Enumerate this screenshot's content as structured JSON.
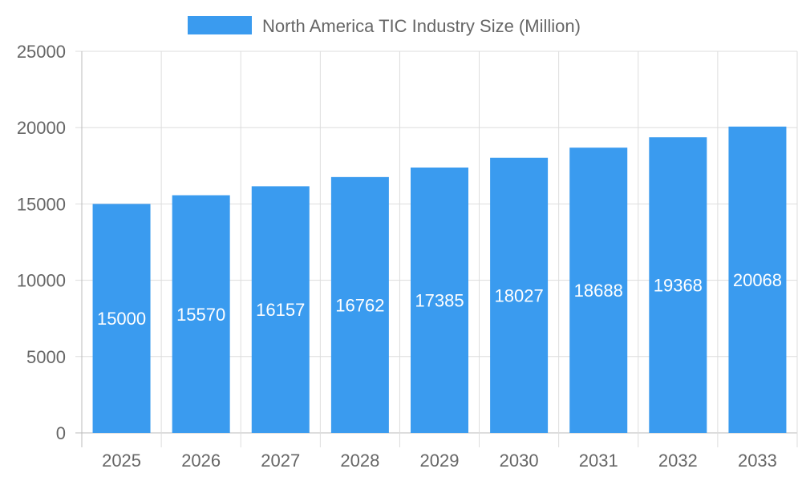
{
  "chart_data": {
    "type": "bar",
    "title": "",
    "xlabel": "",
    "ylabel": "",
    "categories": [
      "2025",
      "2026",
      "2027",
      "2028",
      "2029",
      "2030",
      "2031",
      "2032",
      "2033"
    ],
    "series": [
      {
        "name": "North America TIC Industry Size (Million)",
        "values": [
          15000,
          15570,
          16157,
          16762,
          17385,
          18027,
          18688,
          19368,
          20068
        ],
        "color": "#3a9bef"
      }
    ],
    "ylim": [
      0,
      25000
    ],
    "yticks": [
      0,
      5000,
      10000,
      15000,
      20000,
      25000
    ],
    "grid": true,
    "legend_position": "top",
    "data_labels": true
  }
}
